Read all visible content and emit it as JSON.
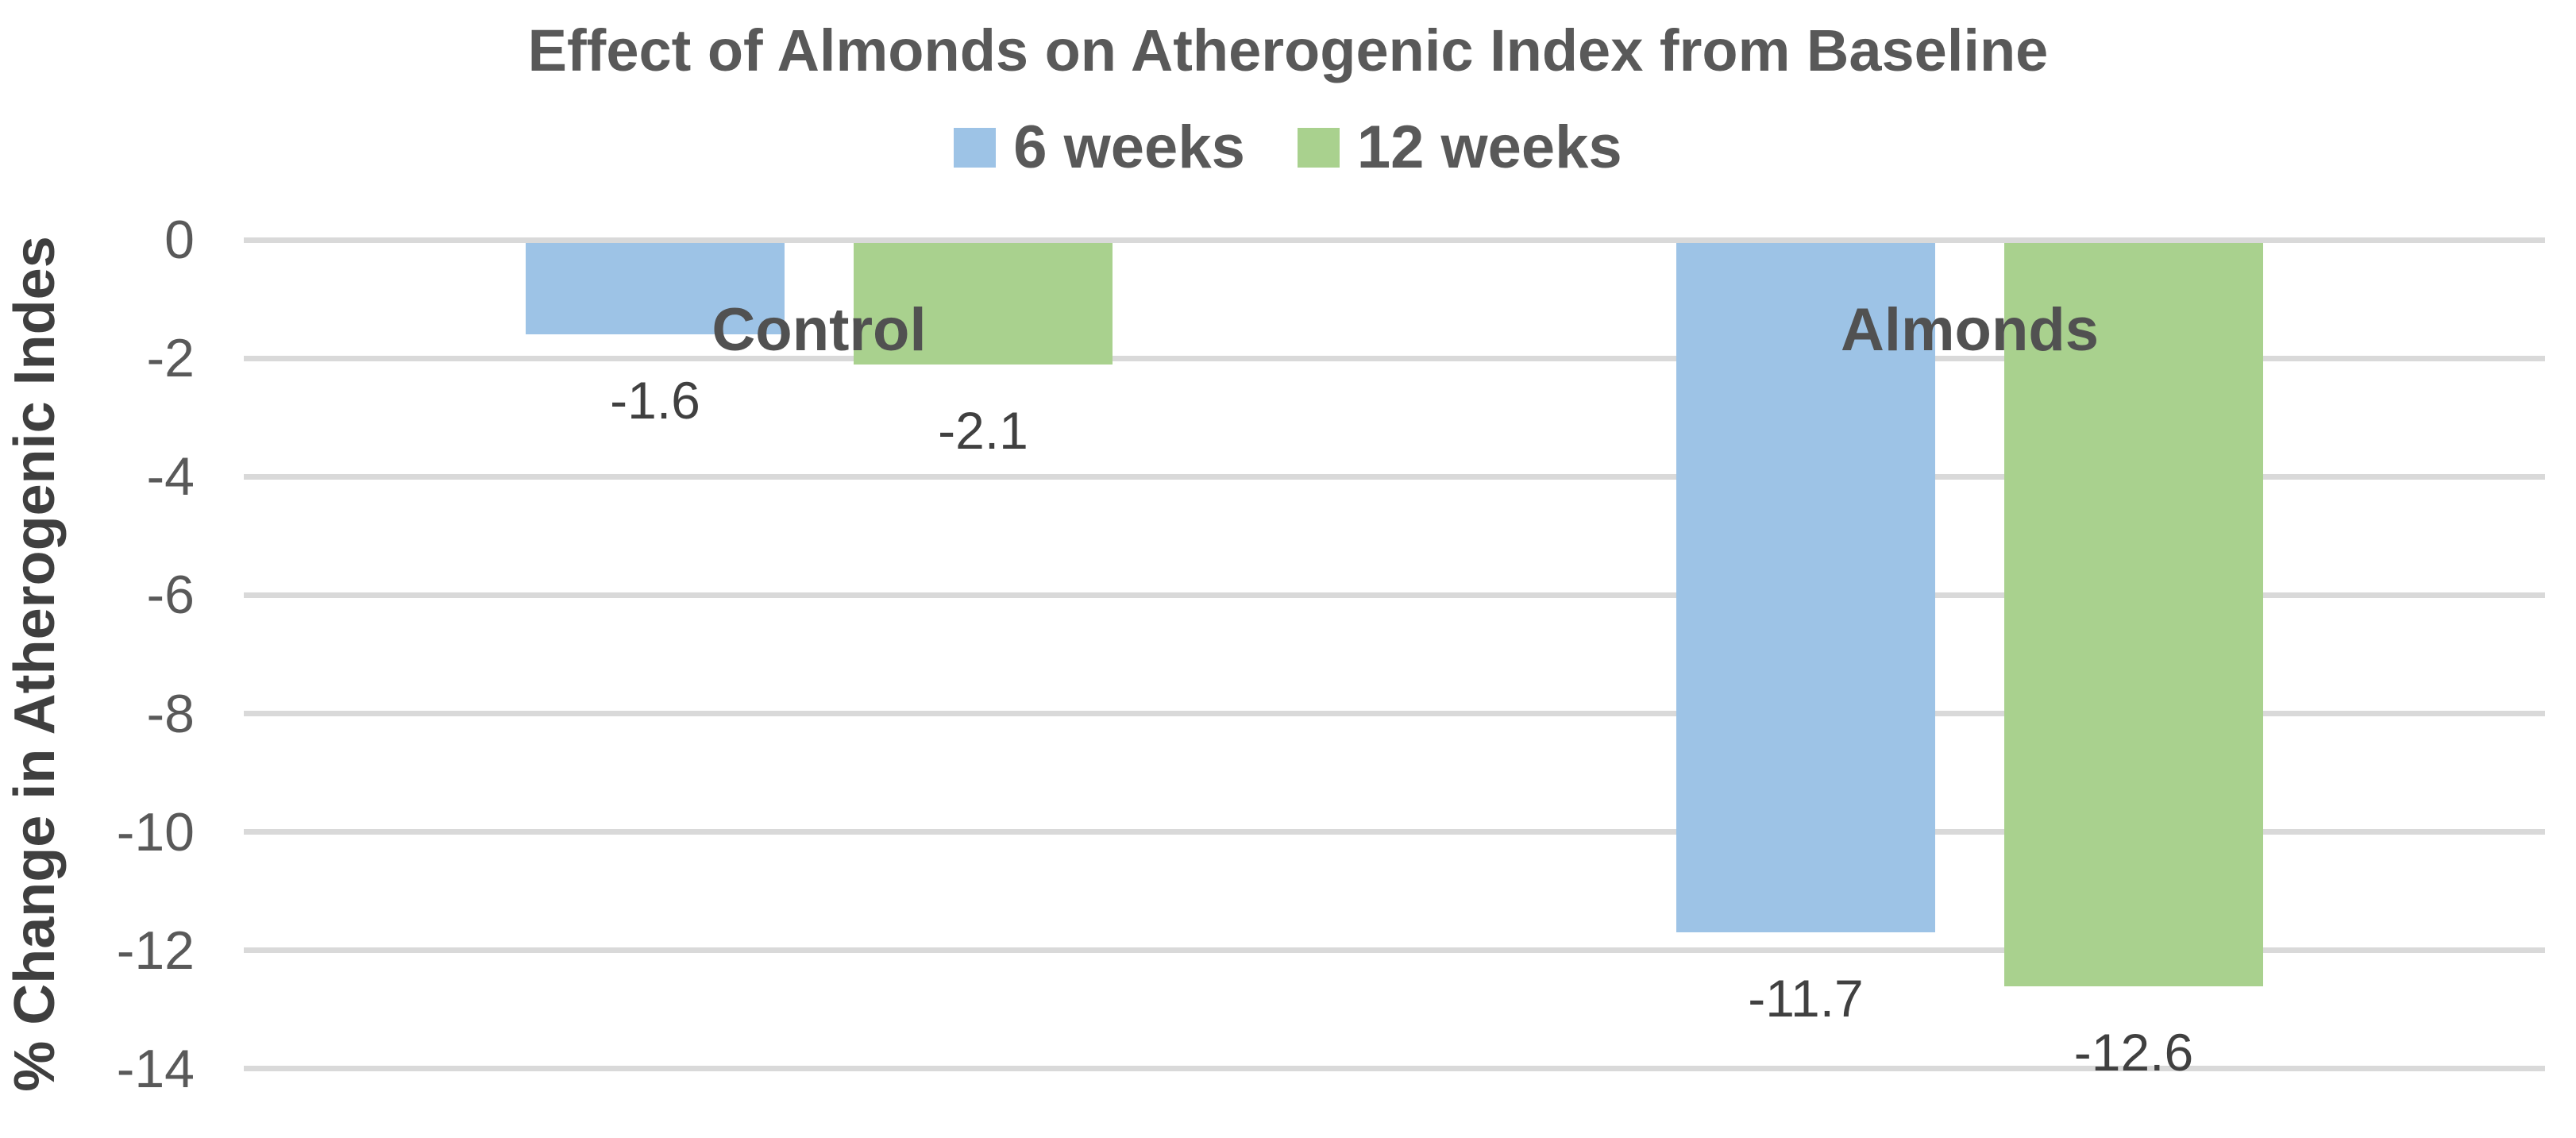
{
  "chart_data": {
    "type": "bar",
    "title": "Effect of Almonds on Atherogenic Index from Baseline",
    "ylabel": "% Change in Atherogenic Indes",
    "xlabel": "",
    "categories": [
      "Control",
      "Almonds"
    ],
    "series": [
      {
        "name": "6 weeks",
        "color": "#9DC3E6",
        "values": [
          -1.6,
          -11.7
        ],
        "labels": [
          "-1.6",
          "-11.7"
        ]
      },
      {
        "name": "12 weeks",
        "color": "#A9D18E",
        "values": [
          -2.1,
          -12.6
        ],
        "labels": [
          "-2.1",
          "-12.6"
        ]
      }
    ],
    "y_ticks": [
      0,
      -2,
      -4,
      -6,
      -8,
      -10,
      -12,
      -14
    ],
    "y_tick_labels": [
      "0",
      "-2",
      "-4",
      "-6",
      "-8",
      "-10",
      "-12",
      "-14"
    ],
    "ylim": [
      -14,
      0
    ],
    "grid": true,
    "legend_position": "top",
    "colors": {
      "title_text": "#595959",
      "legend_text": "#595959",
      "category_text": "#515151",
      "tick_text": "#595959",
      "data_label_text": "#404040",
      "axis_title_text": "#3F3F3F",
      "gridline": "#D9D9D9",
      "background": "#FFFFFF"
    }
  }
}
